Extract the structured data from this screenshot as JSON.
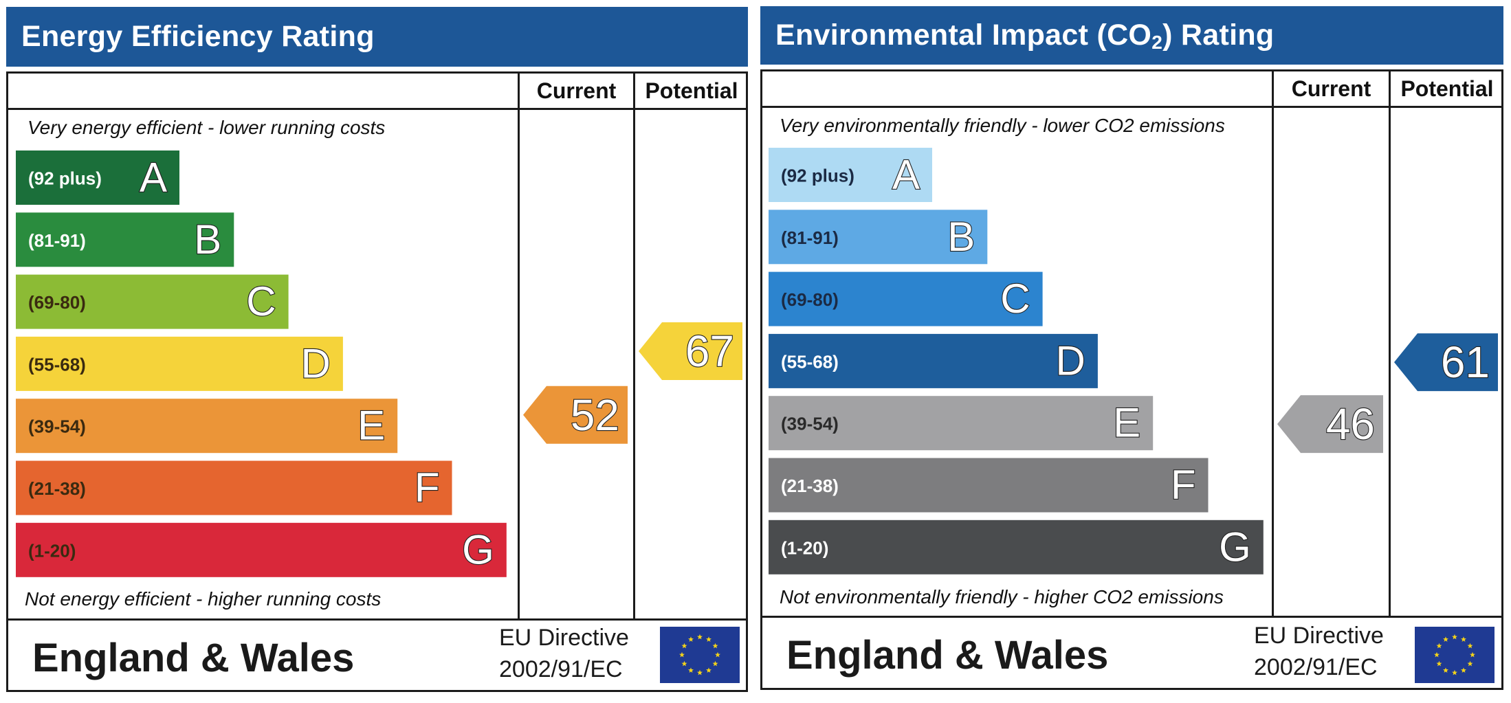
{
  "chart_data": [
    {
      "type": "bar",
      "title": "Energy Efficiency Rating",
      "columns": [
        "Current",
        "Potential"
      ],
      "top_caption": "Very energy efficient - lower running costs",
      "bottom_caption": "Not energy efficient - higher running costs",
      "bands": [
        {
          "letter": "A",
          "range": "(92 plus)",
          "min": 92,
          "max": 100,
          "color": "#1b6f3a"
        },
        {
          "letter": "B",
          "range": "(81-91)",
          "min": 81,
          "max": 91,
          "color": "#2a8c3e"
        },
        {
          "letter": "C",
          "range": "(69-80)",
          "min": 69,
          "max": 80,
          "color": "#8cbb35"
        },
        {
          "letter": "D",
          "range": "(55-68)",
          "min": 55,
          "max": 68,
          "color": "#f5d33a"
        },
        {
          "letter": "E",
          "range": "(39-54)",
          "min": 39,
          "max": 54,
          "color": "#eb9538"
        },
        {
          "letter": "F",
          "range": "(21-38)",
          "min": 21,
          "max": 38,
          "color": "#e5652f"
        },
        {
          "letter": "G",
          "range": "(1-20)",
          "min": 1,
          "max": 20,
          "color": "#d9283a"
        }
      ],
      "current": {
        "value": 52,
        "band": "E"
      },
      "potential": {
        "value": 67,
        "band": "D"
      },
      "footer": {
        "region": "England & Wales",
        "directive_line1": "EU Directive",
        "directive_line2": "2002/91/EC"
      }
    },
    {
      "type": "bar",
      "title_main": "Environmental Impact (CO",
      "title_sub": "2",
      "title_end": ") Rating",
      "columns": [
        "Current",
        "Potential"
      ],
      "top_caption": "Very environmentally friendly - lower CO2 emissions",
      "bottom_caption": "Not environmentally friendly - higher CO2 emissions",
      "bands": [
        {
          "letter": "A",
          "range": "(92 plus)",
          "min": 92,
          "max": 100,
          "color": "#aedaf3"
        },
        {
          "letter": "B",
          "range": "(81-91)",
          "min": 81,
          "max": 91,
          "color": "#5ea9e4"
        },
        {
          "letter": "C",
          "range": "(69-80)",
          "min": 69,
          "max": 80,
          "color": "#2c84cf"
        },
        {
          "letter": "D",
          "range": "(55-68)",
          "min": 55,
          "max": 68,
          "color": "#1e5e9c"
        },
        {
          "letter": "E",
          "range": "(39-54)",
          "min": 39,
          "max": 54,
          "color": "#a2a2a4"
        },
        {
          "letter": "F",
          "range": "(21-38)",
          "min": 21,
          "max": 38,
          "color": "#7d7d7f"
        },
        {
          "letter": "G",
          "range": "(1-20)",
          "min": 1,
          "max": 20,
          "color": "#4a4c4e"
        }
      ],
      "current": {
        "value": 46,
        "band": "E"
      },
      "potential": {
        "value": 61,
        "band": "D"
      },
      "footer": {
        "region": "England & Wales",
        "directive_line1": "EU Directive",
        "directive_line2": "2002/91/EC"
      }
    }
  ],
  "colors": {
    "header_blue": "#1d5797",
    "flag_blue": "#1f3a93",
    "flag_star": "#f2d21b"
  }
}
